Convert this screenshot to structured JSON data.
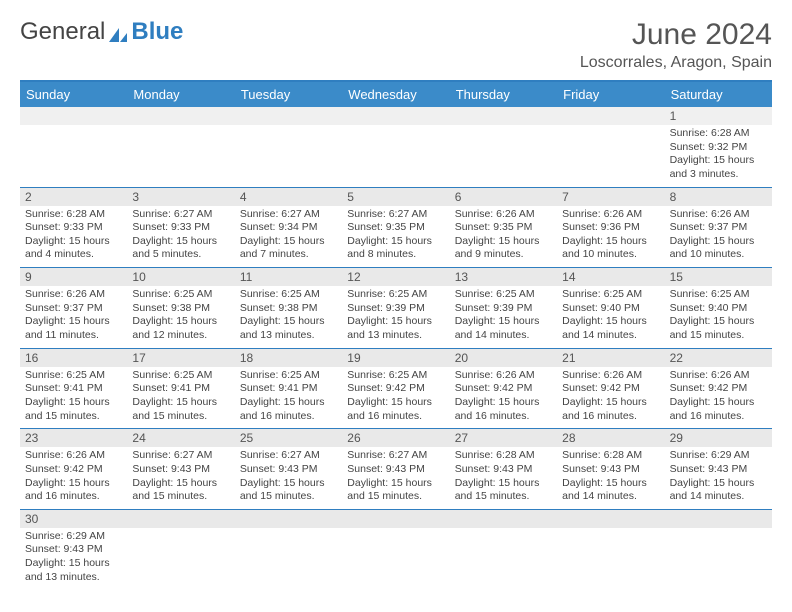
{
  "brand": {
    "part1": "General",
    "part2": "Blue"
  },
  "title": "June 2024",
  "location": "Loscorrales, Aragon, Spain",
  "colors": {
    "accent": "#3b8bc9",
    "rule": "#2f7ec0",
    "daybg": "#e9e9e9"
  },
  "weekdays": [
    "Sunday",
    "Monday",
    "Tuesday",
    "Wednesday",
    "Thursday",
    "Friday",
    "Saturday"
  ],
  "weeks": [
    {
      "days": [
        null,
        null,
        null,
        null,
        null,
        null,
        {
          "n": "1",
          "sunrise": "Sunrise: 6:28 AM",
          "sunset": "Sunset: 9:32 PM",
          "daylight": "Daylight: 15 hours and 3 minutes."
        }
      ]
    },
    {
      "days": [
        {
          "n": "2",
          "sunrise": "Sunrise: 6:28 AM",
          "sunset": "Sunset: 9:33 PM",
          "daylight": "Daylight: 15 hours and 4 minutes."
        },
        {
          "n": "3",
          "sunrise": "Sunrise: 6:27 AM",
          "sunset": "Sunset: 9:33 PM",
          "daylight": "Daylight: 15 hours and 5 minutes."
        },
        {
          "n": "4",
          "sunrise": "Sunrise: 6:27 AM",
          "sunset": "Sunset: 9:34 PM",
          "daylight": "Daylight: 15 hours and 7 minutes."
        },
        {
          "n": "5",
          "sunrise": "Sunrise: 6:27 AM",
          "sunset": "Sunset: 9:35 PM",
          "daylight": "Daylight: 15 hours and 8 minutes."
        },
        {
          "n": "6",
          "sunrise": "Sunrise: 6:26 AM",
          "sunset": "Sunset: 9:35 PM",
          "daylight": "Daylight: 15 hours and 9 minutes."
        },
        {
          "n": "7",
          "sunrise": "Sunrise: 6:26 AM",
          "sunset": "Sunset: 9:36 PM",
          "daylight": "Daylight: 15 hours and 10 minutes."
        },
        {
          "n": "8",
          "sunrise": "Sunrise: 6:26 AM",
          "sunset": "Sunset: 9:37 PM",
          "daylight": "Daylight: 15 hours and 10 minutes."
        }
      ]
    },
    {
      "days": [
        {
          "n": "9",
          "sunrise": "Sunrise: 6:26 AM",
          "sunset": "Sunset: 9:37 PM",
          "daylight": "Daylight: 15 hours and 11 minutes."
        },
        {
          "n": "10",
          "sunrise": "Sunrise: 6:25 AM",
          "sunset": "Sunset: 9:38 PM",
          "daylight": "Daylight: 15 hours and 12 minutes."
        },
        {
          "n": "11",
          "sunrise": "Sunrise: 6:25 AM",
          "sunset": "Sunset: 9:38 PM",
          "daylight": "Daylight: 15 hours and 13 minutes."
        },
        {
          "n": "12",
          "sunrise": "Sunrise: 6:25 AM",
          "sunset": "Sunset: 9:39 PM",
          "daylight": "Daylight: 15 hours and 13 minutes."
        },
        {
          "n": "13",
          "sunrise": "Sunrise: 6:25 AM",
          "sunset": "Sunset: 9:39 PM",
          "daylight": "Daylight: 15 hours and 14 minutes."
        },
        {
          "n": "14",
          "sunrise": "Sunrise: 6:25 AM",
          "sunset": "Sunset: 9:40 PM",
          "daylight": "Daylight: 15 hours and 14 minutes."
        },
        {
          "n": "15",
          "sunrise": "Sunrise: 6:25 AM",
          "sunset": "Sunset: 9:40 PM",
          "daylight": "Daylight: 15 hours and 15 minutes."
        }
      ]
    },
    {
      "days": [
        {
          "n": "16",
          "sunrise": "Sunrise: 6:25 AM",
          "sunset": "Sunset: 9:41 PM",
          "daylight": "Daylight: 15 hours and 15 minutes."
        },
        {
          "n": "17",
          "sunrise": "Sunrise: 6:25 AM",
          "sunset": "Sunset: 9:41 PM",
          "daylight": "Daylight: 15 hours and 15 minutes."
        },
        {
          "n": "18",
          "sunrise": "Sunrise: 6:25 AM",
          "sunset": "Sunset: 9:41 PM",
          "daylight": "Daylight: 15 hours and 16 minutes."
        },
        {
          "n": "19",
          "sunrise": "Sunrise: 6:25 AM",
          "sunset": "Sunset: 9:42 PM",
          "daylight": "Daylight: 15 hours and 16 minutes."
        },
        {
          "n": "20",
          "sunrise": "Sunrise: 6:26 AM",
          "sunset": "Sunset: 9:42 PM",
          "daylight": "Daylight: 15 hours and 16 minutes."
        },
        {
          "n": "21",
          "sunrise": "Sunrise: 6:26 AM",
          "sunset": "Sunset: 9:42 PM",
          "daylight": "Daylight: 15 hours and 16 minutes."
        },
        {
          "n": "22",
          "sunrise": "Sunrise: 6:26 AM",
          "sunset": "Sunset: 9:42 PM",
          "daylight": "Daylight: 15 hours and 16 minutes."
        }
      ]
    },
    {
      "days": [
        {
          "n": "23",
          "sunrise": "Sunrise: 6:26 AM",
          "sunset": "Sunset: 9:42 PM",
          "daylight": "Daylight: 15 hours and 16 minutes."
        },
        {
          "n": "24",
          "sunrise": "Sunrise: 6:27 AM",
          "sunset": "Sunset: 9:43 PM",
          "daylight": "Daylight: 15 hours and 15 minutes."
        },
        {
          "n": "25",
          "sunrise": "Sunrise: 6:27 AM",
          "sunset": "Sunset: 9:43 PM",
          "daylight": "Daylight: 15 hours and 15 minutes."
        },
        {
          "n": "26",
          "sunrise": "Sunrise: 6:27 AM",
          "sunset": "Sunset: 9:43 PM",
          "daylight": "Daylight: 15 hours and 15 minutes."
        },
        {
          "n": "27",
          "sunrise": "Sunrise: 6:28 AM",
          "sunset": "Sunset: 9:43 PM",
          "daylight": "Daylight: 15 hours and 15 minutes."
        },
        {
          "n": "28",
          "sunrise": "Sunrise: 6:28 AM",
          "sunset": "Sunset: 9:43 PM",
          "daylight": "Daylight: 15 hours and 14 minutes."
        },
        {
          "n": "29",
          "sunrise": "Sunrise: 6:29 AM",
          "sunset": "Sunset: 9:43 PM",
          "daylight": "Daylight: 15 hours and 14 minutes."
        }
      ]
    },
    {
      "days": [
        {
          "n": "30",
          "sunrise": "Sunrise: 6:29 AM",
          "sunset": "Sunset: 9:43 PM",
          "daylight": "Daylight: 15 hours and 13 minutes."
        },
        null,
        null,
        null,
        null,
        null,
        null
      ]
    }
  ]
}
